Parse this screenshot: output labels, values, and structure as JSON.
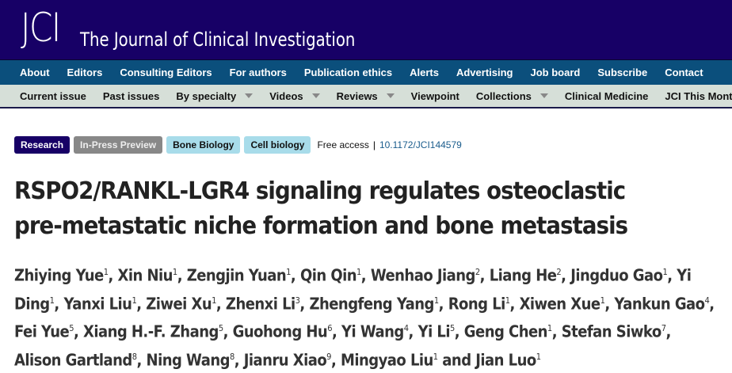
{
  "header": {
    "logo": "JCI",
    "title": "The Journal of Clinical Investigation",
    "colors": {
      "header": "#170066",
      "nav": "#0b4f7c",
      "subnav": "#d6dfd8"
    }
  },
  "nav_primary": [
    "About",
    "Editors",
    "Consulting Editors",
    "For authors",
    "Publication ethics",
    "Alerts",
    "Advertising",
    "Job board",
    "Subscribe",
    "Contact"
  ],
  "nav_secondary": [
    {
      "label": "Current issue",
      "dropdown": false
    },
    {
      "label": "Past issues",
      "dropdown": false
    },
    {
      "label": "By specialty",
      "dropdown": true
    },
    {
      "label": "Videos",
      "dropdown": true
    },
    {
      "label": "Reviews",
      "dropdown": true
    },
    {
      "label": "Viewpoint",
      "dropdown": false
    },
    {
      "label": "Collections",
      "dropdown": true
    },
    {
      "label": "Clinical Medicine",
      "dropdown": false
    },
    {
      "label": "JCI This Month",
      "dropdown": false
    }
  ],
  "article": {
    "tags": [
      "Research",
      "In-Press Preview",
      "Bone Biology",
      "Cell biology"
    ],
    "access": "Free access",
    "separator": "|",
    "doi": "10.1172/JCI144579",
    "title": "RSPO2/RANKL-LGR4 signaling regulates osteoclastic pre-metastatic niche formation and bone metastasis",
    "authors": [
      [
        "Zhiying Yue",
        "1"
      ],
      [
        "Xin Niu",
        "1"
      ],
      [
        "Zengjin Yuan",
        "1"
      ],
      [
        "Qin Qin",
        "1"
      ],
      [
        "Wenhao Jiang",
        "2"
      ],
      [
        "Liang He",
        "2"
      ],
      [
        "Jingduo Gao",
        "1"
      ],
      [
        "Yi Ding",
        "1"
      ],
      [
        "Yanxi Liu",
        "1"
      ],
      [
        "Ziwei Xu",
        "1"
      ],
      [
        "Zhenxi Li",
        "3"
      ],
      [
        "Zhengfeng Yang",
        "1"
      ],
      [
        "Rong Li",
        "1"
      ],
      [
        "Xiwen Xue",
        "1"
      ],
      [
        "Yankun Gao",
        "4"
      ],
      [
        "Fei Yue",
        "5"
      ],
      [
        "Xiang H.-F. Zhang",
        "5"
      ],
      [
        "Guohong Hu",
        "6"
      ],
      [
        "Yi Wang",
        "4"
      ],
      [
        "Yi Li",
        "5"
      ],
      [
        "Geng Chen",
        "1"
      ],
      [
        "Stefan Siwko",
        "7"
      ],
      [
        "Alison Gartland",
        "8"
      ],
      [
        "Ning Wang",
        "8"
      ],
      [
        "Jianru Xiao",
        "9"
      ],
      [
        "Mingyao Liu",
        "1"
      ],
      [
        "Jian Luo",
        "1"
      ]
    ]
  }
}
